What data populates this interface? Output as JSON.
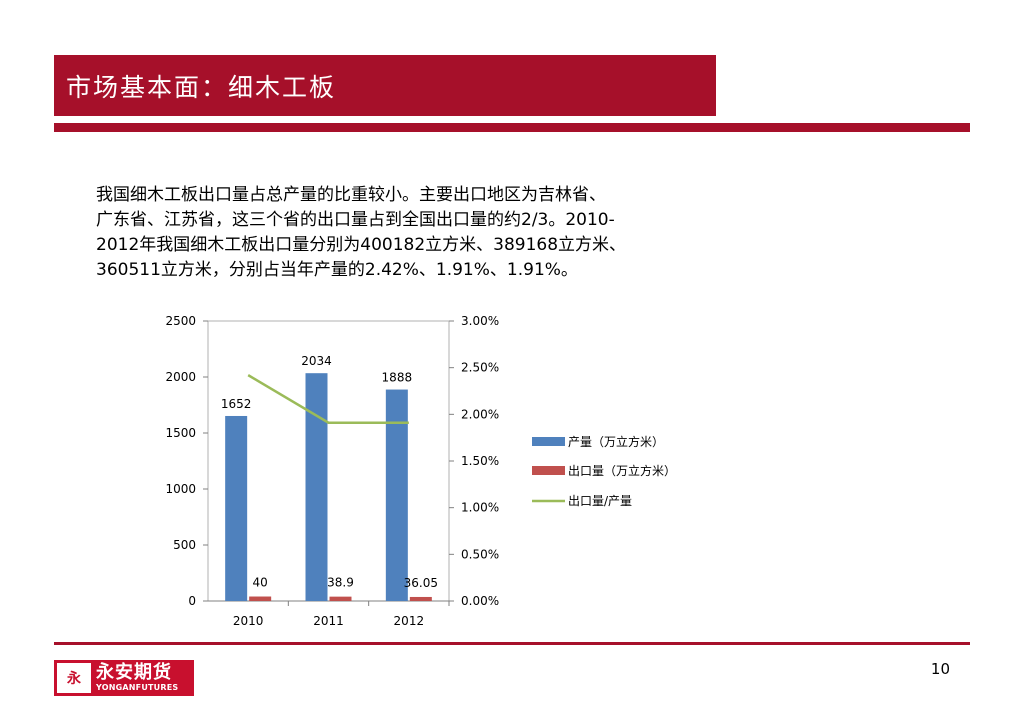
{
  "header": {
    "title": "市场基本面：细木工板"
  },
  "body": {
    "lines": [
      "我国细木工板出口量占总产量的比重较小。主要出口地区为吉林省、",
      "广东省、江苏省，这三个省的出口量占到全国出口量的约2/3。2010-",
      "2012年我国细木工板出口量分别为400182立方米、389168立方米、",
      "360511立方米，分别占当年产量的2.42%、1.91%、1.91%。"
    ]
  },
  "chart_data": {
    "type": "bar",
    "categories": [
      "2010",
      "2011",
      "2012"
    ],
    "series": [
      {
        "name": "产量（万立方米）",
        "values": [
          1652,
          2034,
          1888
        ],
        "color": "#4F81BD",
        "axis": "left",
        "labels": [
          "1652",
          "2034",
          "1888"
        ]
      },
      {
        "name": "出口量（万立方米）",
        "values": [
          40,
          38.9,
          36.05
        ],
        "color": "#C0504D",
        "axis": "left",
        "labels": [
          "40",
          "38.9",
          "36.05"
        ]
      },
      {
        "name": "出口量/产量",
        "type": "line",
        "values": [
          0.0242,
          0.0191,
          0.0191
        ],
        "color": "#9BBB59",
        "axis": "right"
      }
    ],
    "y_left": {
      "ticks": [
        "0",
        "500",
        "1000",
        "1500",
        "2000",
        "2500"
      ],
      "range": [
        0,
        2500
      ]
    },
    "y_right": {
      "ticks": [
        "0.00%",
        "0.50%",
        "1.00%",
        "1.50%",
        "2.00%",
        "2.50%",
        "3.00%"
      ],
      "range": [
        0,
        0.03
      ]
    },
    "grid": false,
    "legend": "right"
  },
  "footer": {
    "page": "10",
    "logo_cn": "永安期货",
    "logo_en": "YONGANFUTURES",
    "logo_mark": "永"
  },
  "colors": {
    "brand": "#A6102A"
  }
}
